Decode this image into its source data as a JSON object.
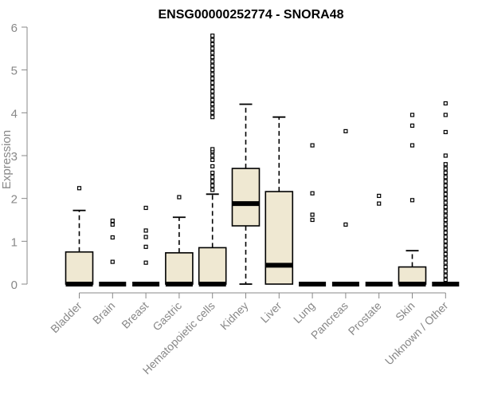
{
  "chart_data": {
    "type": "boxplot",
    "title": "ENSG00000252774 - SNORA48",
    "xlabel": "",
    "ylabel": "Expression",
    "ylim": [
      0,
      6
    ],
    "yticks": [
      "0",
      "1",
      "2",
      "3",
      "4",
      "5",
      "6"
    ],
    "grid": false,
    "colors": {
      "box_fill": "#efe8d2",
      "box_stroke": "#000000",
      "axis": "#888888",
      "tick_text": "#888888",
      "title": "#000000"
    },
    "categories": [
      "Bladder",
      "Brain",
      "Breast",
      "Gastric",
      "Hematopoietic cells",
      "Kidney",
      "Liver",
      "Lung",
      "Pancreas",
      "Prostate",
      "Skin",
      "Unknown / Other"
    ],
    "boxes": [
      {
        "min": 0,
        "q1": 0,
        "median": 0,
        "q3": 0.75,
        "max": 1.72,
        "outliers": [
          2.24
        ]
      },
      {
        "min": 0,
        "q1": 0,
        "median": 0,
        "q3": 0,
        "max": 0,
        "outliers": [
          0.52,
          1.09,
          1.39,
          1.48
        ]
      },
      {
        "min": 0,
        "q1": 0,
        "median": 0,
        "q3": 0,
        "max": 0,
        "outliers": [
          0.5,
          0.87,
          1.1,
          1.25,
          1.78
        ]
      },
      {
        "min": 0,
        "q1": 0,
        "median": 0,
        "q3": 0.73,
        "max": 1.56,
        "outliers": [
          2.03
        ]
      },
      {
        "min": 0,
        "q1": 0,
        "median": 0,
        "q3": 0.85,
        "max": 2.1,
        "outliers": [
          2.2,
          2.3,
          2.4,
          2.5,
          2.6,
          2.75,
          2.9,
          3.0,
          3.1,
          3.15,
          3.9,
          4.0,
          4.1,
          4.2,
          4.3,
          4.4,
          4.5,
          4.6,
          4.7,
          4.8,
          4.9,
          5.0,
          5.1,
          5.2,
          5.3,
          5.4,
          5.5,
          5.6,
          5.7,
          5.8
        ]
      },
      {
        "min": 0,
        "q1": 1.36,
        "median": 1.88,
        "q3": 2.7,
        "max": 4.2,
        "outliers": []
      },
      {
        "min": 0,
        "q1": 0,
        "median": 0.44,
        "q3": 2.16,
        "max": 3.9,
        "outliers": []
      },
      {
        "min": 0,
        "q1": 0,
        "median": 0,
        "q3": 0,
        "max": 0,
        "outliers": [
          1.5,
          1.62,
          2.12,
          3.24
        ]
      },
      {
        "min": 0,
        "q1": 0,
        "median": 0,
        "q3": 0,
        "max": 0,
        "outliers": [
          1.39,
          3.57
        ]
      },
      {
        "min": 0,
        "q1": 0,
        "median": 0,
        "q3": 0,
        "max": 0,
        "outliers": [
          1.88,
          2.06
        ]
      },
      {
        "min": 0,
        "q1": 0,
        "median": 0,
        "q3": 0.4,
        "max": 0.78,
        "outliers": [
          1.96,
          3.24,
          3.7,
          3.95
        ]
      },
      {
        "min": 0,
        "q1": 0,
        "median": 0,
        "q3": 0,
        "max": 0,
        "outliers": [
          0.1,
          0.2,
          0.3,
          0.4,
          0.5,
          0.6,
          0.7,
          0.8,
          0.9,
          1.0,
          1.1,
          1.2,
          1.3,
          1.4,
          1.5,
          1.6,
          1.7,
          1.8,
          1.9,
          2.0,
          2.1,
          2.2,
          2.3,
          2.4,
          2.5,
          2.6,
          2.7,
          2.8,
          3.0,
          3.55,
          3.95,
          4.22
        ]
      }
    ]
  }
}
